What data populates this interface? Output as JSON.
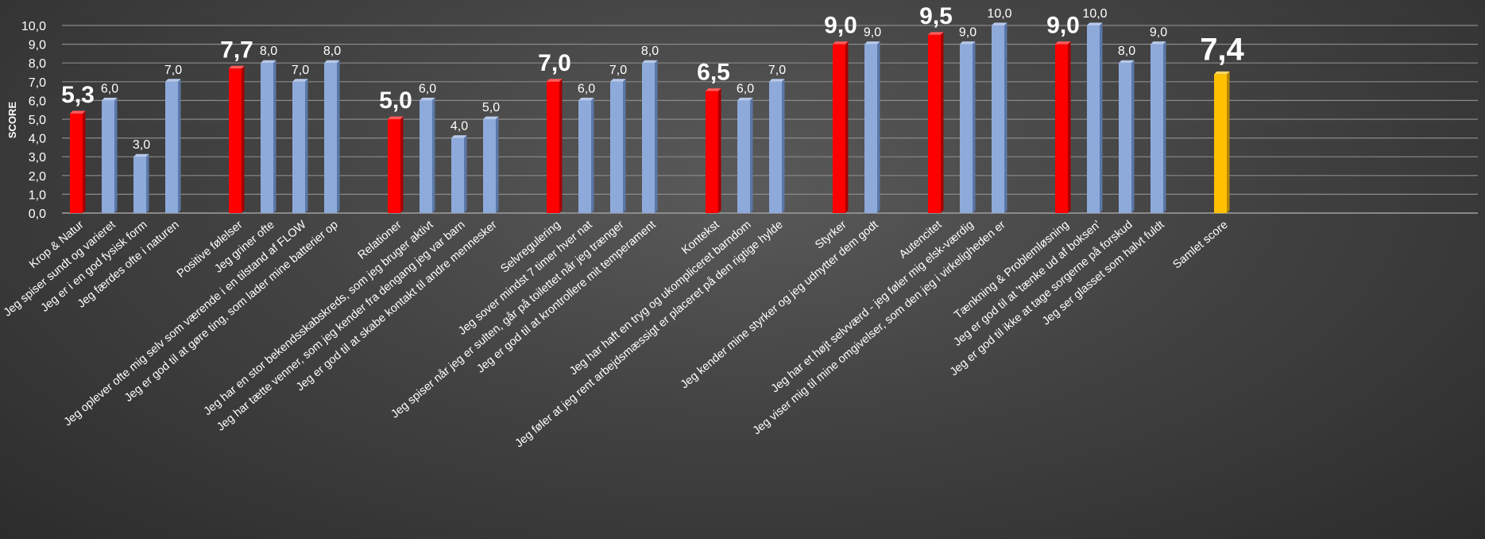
{
  "chart_data": {
    "type": "bar",
    "title": "",
    "xlabel": "",
    "ylabel": "SCORE",
    "ylim": [
      0,
      10
    ],
    "yticks": [
      "0,0",
      "1,0",
      "2,0",
      "3,0",
      "4,0",
      "5,0",
      "6,0",
      "7,0",
      "8,0",
      "9,0",
      "10,0"
    ],
    "grid": true,
    "colors": {
      "category": "#ff0000",
      "item": "#8eaadb",
      "total": "#ffc000"
    },
    "bars": [
      {
        "label": "Krop & Natur",
        "value": 5.3,
        "display": "5,3",
        "kind": "category"
      },
      {
        "label": "Jeg spiser sundt og varieret",
        "value": 6.0,
        "display": "6,0",
        "kind": "item"
      },
      {
        "label": "Jeg er i en god fysisk form",
        "value": 3.0,
        "display": "3,0",
        "kind": "item"
      },
      {
        "label": "Jeg færdes ofte i naturen",
        "value": 7.0,
        "display": "7,0",
        "kind": "item"
      },
      {
        "label": "Positive følelser",
        "value": 7.7,
        "display": "7,7",
        "kind": "category"
      },
      {
        "label": "Jeg griner ofte",
        "value": 8.0,
        "display": "8,0",
        "kind": "item"
      },
      {
        "label": "Jeg oplever ofte mig selv som værende i en tilstand af FLOW",
        "value": 7.0,
        "display": "7,0",
        "kind": "item"
      },
      {
        "label": "Jeg er god til at gøre ting, som lader mine batterier op",
        "value": 8.0,
        "display": "8,0",
        "kind": "item"
      },
      {
        "label": "Relationer",
        "value": 5.0,
        "display": "5,0",
        "kind": "category"
      },
      {
        "label": "Jeg har en stor bekendsskabskreds, som jeg bruger aktivt",
        "value": 6.0,
        "display": "6,0",
        "kind": "item"
      },
      {
        "label": "Jeg har tætte venner, som jeg kender fra dengang jeg var barn",
        "value": 4.0,
        "display": "4,0",
        "kind": "item"
      },
      {
        "label": "Jeg er god til at skabe kontakt til andre mennesker",
        "value": 5.0,
        "display": "5,0",
        "kind": "item"
      },
      {
        "label": "Selvregulering",
        "value": 7.0,
        "display": "7,0",
        "kind": "category"
      },
      {
        "label": "Jeg sover mindst 7 timer hver nat",
        "value": 6.0,
        "display": "6,0",
        "kind": "item"
      },
      {
        "label": "Jeg spiser når jeg er sulten, går på toilettet når jeg trænger",
        "value": 7.0,
        "display": "7,0",
        "kind": "item"
      },
      {
        "label": "Jeg er god til at krontrollere mit temperament",
        "value": 8.0,
        "display": "8,0",
        "kind": "item"
      },
      {
        "label": "Kontekst",
        "value": 6.5,
        "display": "6,5",
        "kind": "category"
      },
      {
        "label": "Jeg har haft en tryg og ukompliceret barndom",
        "value": 6.0,
        "display": "6,0",
        "kind": "item"
      },
      {
        "label": "Jeg føler at jeg rent arbejdsmæssigt er placeret på den rigtige hylde",
        "value": 7.0,
        "display": "7,0",
        "kind": "item"
      },
      {
        "label": "Styrker",
        "value": 9.0,
        "display": "9,0",
        "kind": "category"
      },
      {
        "label": "Jeg kender mine styrker og jeg udnytter dem godt",
        "value": 9.0,
        "display": "9,0",
        "kind": "item"
      },
      {
        "label": "Autencitet",
        "value": 9.5,
        "display": "9,5",
        "kind": "category"
      },
      {
        "label": "Jeg har et højt selvværd - jeg føler mig elsk-værdig",
        "value": 9.0,
        "display": "9,0",
        "kind": "item"
      },
      {
        "label": "Jeg viser mig til mine omgivelser, som den jeg i virkeligheden er",
        "value": 10.0,
        "display": "10,0",
        "kind": "item"
      },
      {
        "label": "Tænkning & Problemløsning",
        "value": 9.0,
        "display": "9,0",
        "kind": "category"
      },
      {
        "label": "Jeg er god til at 'tænke ud af boksen'",
        "value": 10.0,
        "display": "10,0",
        "kind": "item"
      },
      {
        "label": "Jeg er god til ikke at tage sorgerne på forskud",
        "value": 8.0,
        "display": "8,0",
        "kind": "item"
      },
      {
        "label": "Jeg ser glasset som halvt fuldt",
        "value": 9.0,
        "display": "9,0",
        "kind": "item"
      },
      {
        "label": "Samlet score",
        "value": 7.4,
        "display": "7,4",
        "kind": "total"
      }
    ]
  }
}
